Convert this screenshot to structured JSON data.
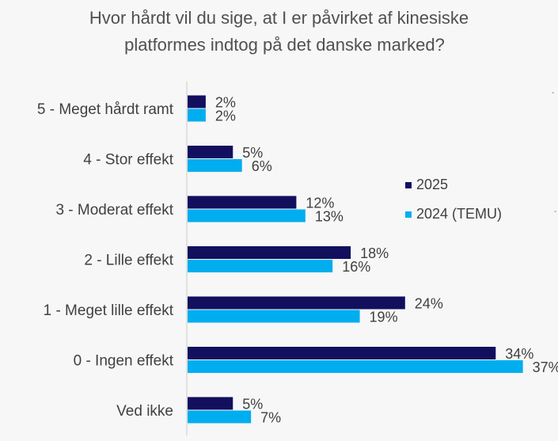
{
  "chart_data": {
    "type": "bar",
    "orientation": "horizontal",
    "title": "Hvor hårdt vil du sige, at I er påvirket af kinesiske platformes  indtog på det danske marked?",
    "title_lines": [
      "Hvor hårdt vil du sige, at I er påvirket af kinesiske",
      "platformes  indtog på det danske marked?"
    ],
    "categories": [
      "5 - Meget hårdt ramt",
      "4 - Stor effekt",
      "3 - Moderat effekt",
      "2 - Lille effekt",
      "1 - Meget lille effekt",
      "0 - Ingen effekt",
      "Ved ikke"
    ],
    "series": [
      {
        "name": "2025",
        "color": "#12105e",
        "values": [
          2,
          5,
          12,
          18,
          24,
          34,
          5
        ]
      },
      {
        "name": "2024 (TEMU)",
        "color": "#00aeef",
        "values": [
          2,
          6,
          13,
          16,
          19,
          37,
          7
        ]
      }
    ],
    "value_suffix": "%",
    "xlim": [
      0,
      40
    ],
    "legend_position": "right",
    "grid": false,
    "xlabel": "",
    "ylabel": ""
  }
}
